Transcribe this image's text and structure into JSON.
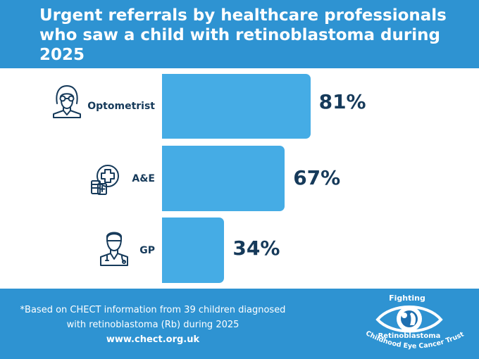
{
  "title": "Urgent referrals by healthcare professionals who saw a child with retinoblastoma during 2025",
  "chart_data": {
    "type": "bar",
    "orientation": "horizontal",
    "title": "Urgent referrals by healthcare professionals who saw a child with retinoblastoma during 2025",
    "categories": [
      "Optometrist",
      "A&E",
      "GP"
    ],
    "values": [
      81,
      67,
      34
    ],
    "value_labels": [
      "81%",
      "67%",
      "34%"
    ],
    "unit": "%",
    "xlim": [
      0,
      100
    ],
    "grid": false,
    "legend": "none",
    "bar_color": "#45ace5"
  },
  "icons": [
    "optometrist-icon",
    "hospital-cross-icon",
    "doctor-icon"
  ],
  "footer": {
    "footnote_line1": "*Based on CHECT information from 39 children diagnosed",
    "footnote_line2": "with retinoblastoma (Rb) during 2025",
    "url": "www.chect.org.uk"
  },
  "logo": {
    "line1": "Fighting",
    "line2": "Retinoblastoma",
    "line3": "Childhood Eye Cancer Trust"
  },
  "colors": {
    "header_bg": "#2e93d2",
    "bar": "#45ace5",
    "label_text": "#163a5a",
    "white": "#ffffff"
  }
}
